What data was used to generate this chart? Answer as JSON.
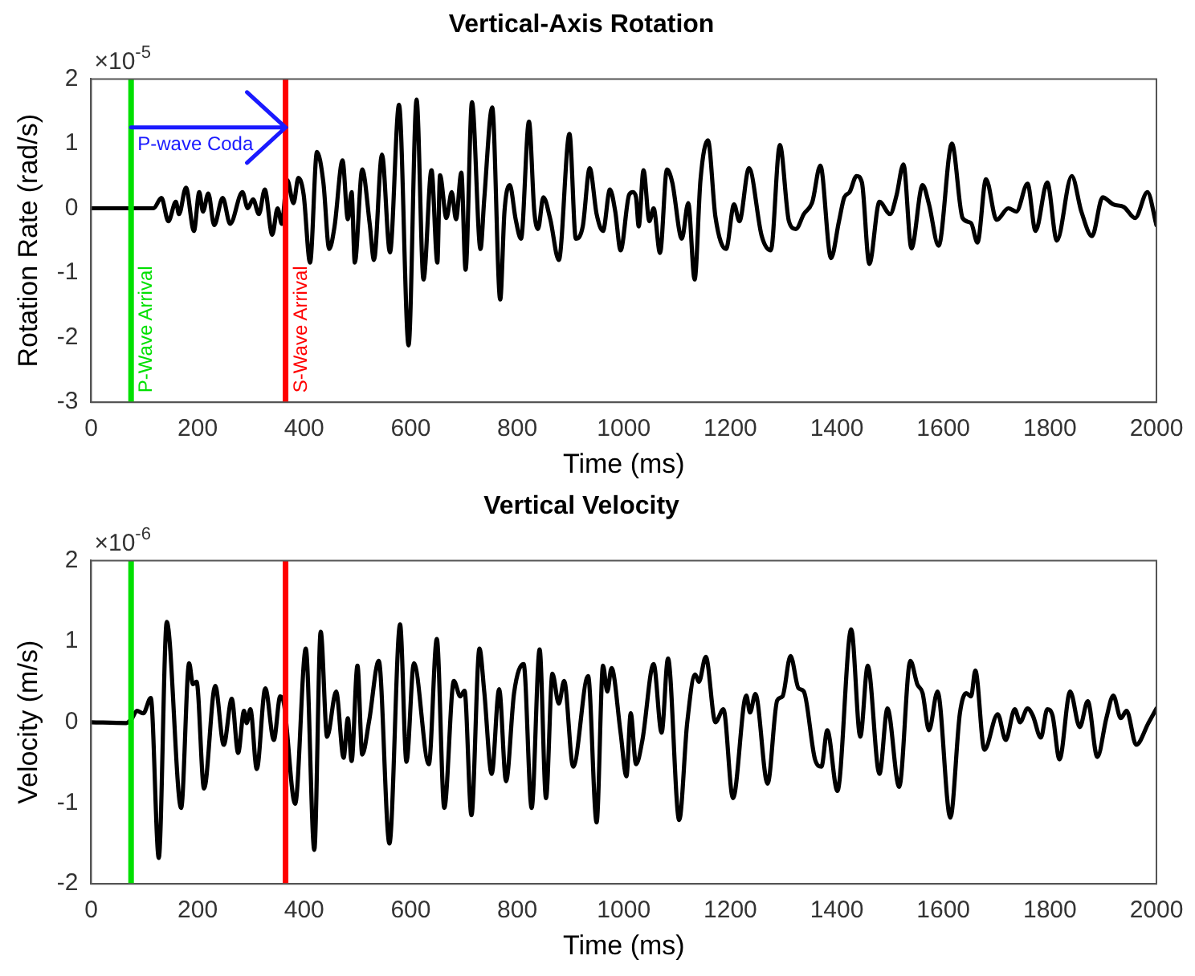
{
  "chart_data": [
    {
      "type": "line",
      "title": "Vertical-Axis Rotation",
      "xlabel": "Time (ms)",
      "ylabel": "Rotation Rate (rad/s)",
      "annotations": [
        "×10$^{-5}$",
        {
          "text": "P-wave Coda",
          "x": 75,
          "y": 1.25
        }
      ],
      "series": [
        {
          "color": "#000000",
          "x": [
            0,
            117,
            132,
            145,
            159,
            165,
            178,
            193,
            203,
            210,
            220,
            231,
            247,
            261,
            284,
            294,
            304,
            315,
            326,
            340,
            350,
            358,
            368,
            380,
            389,
            399,
            411,
            424,
            436,
            447,
            457,
            472,
            482,
            489,
            495,
            509,
            523,
            531,
            546,
            561,
            578,
            596,
            611,
            624,
            639,
            650,
            655,
            667,
            677,
            685,
            695,
            703,
            715,
            731,
            738,
            753,
            768,
            776,
            786,
            797,
            807,
            822,
            832,
            839,
            849,
            862,
            878,
            898,
            910,
            923,
            936,
            949,
            961,
            974,
            984,
            994,
            1010,
            1017,
            1023,
            1028,
            1037,
            1048,
            1056,
            1068,
            1081,
            1091,
            1109,
            1121,
            1133,
            1144,
            1158,
            1172,
            1192,
            1207,
            1217,
            1235,
            1259,
            1276,
            1293,
            1310,
            1323,
            1338,
            1354,
            1369,
            1389,
            1404,
            1414,
            1424,
            1437,
            1447,
            1461,
            1480,
            1500,
            1512,
            1525,
            1540,
            1561,
            1573,
            1591,
            1616,
            1636,
            1652,
            1664,
            1680,
            1700,
            1722,
            1737,
            1758,
            1773,
            1795,
            1813,
            1841,
            1859,
            1879,
            1899,
            1919,
            1939,
            1960,
            1983,
            2000
          ],
          "values": [
            0,
            0,
            0.16,
            -0.2,
            0.1,
            -0.09,
            0.32,
            -0.35,
            0.25,
            -0.05,
            0.23,
            -0.26,
            0.16,
            -0.24,
            0.25,
            0,
            0.14,
            -0.09,
            0.29,
            -0.41,
            0,
            -0.24,
            0.44,
            0.08,
            0.47,
            0.21,
            -0.84,
            0.87,
            0.4,
            -0.63,
            -0.28,
            0.74,
            -0.17,
            0.25,
            -0.84,
            0.6,
            -0.24,
            -0.8,
            0.83,
            -0.68,
            1.6,
            -2.12,
            1.68,
            -1.1,
            0.59,
            -0.84,
            0.51,
            -0.15,
            0.25,
            -0.17,
            0.55,
            -0.95,
            1.64,
            -0.63,
            0.14,
            1.56,
            -1.41,
            -0.05,
            0.36,
            -0.17,
            -0.47,
            1.34,
            -0.05,
            -0.32,
            0.17,
            -0.17,
            -0.8,
            1.15,
            -0.47,
            -0.28,
            0.62,
            -0.09,
            -0.35,
            0.29,
            -0.05,
            -0.65,
            0.21,
            0.25,
            0.17,
            -0.28,
            0.59,
            -0.2,
            0,
            -0.69,
            0.6,
            0.4,
            -0.47,
            0.08,
            -1.1,
            0.44,
            1.05,
            -0.13,
            -0.63,
            0.06,
            -0.2,
            0.62,
            -0.43,
            -0.65,
            0.98,
            -0.2,
            -0.32,
            -0.09,
            0.1,
            0.66,
            -0.77,
            -0.2,
            0.17,
            0.25,
            0.5,
            0.4,
            -0.86,
            0.1,
            -0.09,
            0.2,
            0.68,
            -0.62,
            0.36,
            0.06,
            -0.58,
            1.0,
            -0.15,
            -0.23,
            -0.53,
            0.45,
            -0.18,
            0,
            -0.05,
            0.38,
            -0.35,
            0.4,
            -0.5,
            0.5,
            -0.05,
            -0.43,
            0.17,
            0.06,
            0.02,
            -0.15,
            0.25,
            -0.26
          ]
        }
      ],
      "xlim": [
        0,
        2000
      ],
      "xticks": [
        0,
        200,
        400,
        600,
        800,
        1000,
        1200,
        1400,
        1600,
        1800,
        2000
      ],
      "ylim": [
        -3,
        2
      ],
      "yticks": [
        -3,
        -2,
        -1,
        0,
        1,
        2
      ],
      "ref_lines": [
        {
          "axis": "x",
          "value": 75,
          "label": "P-Wave Arrival",
          "color": "#00e000"
        },
        {
          "axis": "x",
          "value": 365,
          "label": "S-Wave Arrival",
          "color": "#ff0000"
        }
      ],
      "grid": false,
      "legend": false,
      "marker": "none",
      "line_style": "solid"
    },
    {
      "type": "line",
      "title": "Vertical Velocity",
      "xlabel": "Time (ms)",
      "ylabel": "Velocity (m/s)",
      "annotations": [
        "×10$^{-6}$"
      ],
      "series": [
        {
          "color": "#000000",
          "x": [
            0,
            66,
            76,
            86,
            98,
            112,
            127,
            142,
            169,
            184,
            191,
            198,
            212,
            233,
            249,
            264,
            276,
            287,
            292,
            299,
            311,
            327,
            343,
            355,
            362,
            383,
            403,
            419,
            431,
            443,
            460,
            474,
            482,
            489,
            500,
            509,
            522,
            540,
            560,
            580,
            592,
            606,
            634,
            649,
            663,
            681,
            693,
            701,
            714,
            729,
            738,
            752,
            766,
            779,
            794,
            812,
            827,
            842,
            854,
            866,
            878,
            888,
            905,
            933,
            949,
            961,
            969,
            977,
            994,
            1005,
            1013,
            1023,
            1035,
            1056,
            1071,
            1083,
            1104,
            1119,
            1134,
            1141,
            1154,
            1172,
            1187,
            1205,
            1230,
            1237,
            1247,
            1270,
            1288,
            1298,
            1313,
            1328,
            1338,
            1359,
            1371,
            1382,
            1401,
            1427,
            1444,
            1458,
            1480,
            1495,
            1517,
            1538,
            1551,
            1561,
            1573,
            1589,
            1613,
            1631,
            1643,
            1652,
            1660,
            1677,
            1702,
            1717,
            1734,
            1744,
            1758,
            1768,
            1783,
            1795,
            1805,
            1818,
            1838,
            1856,
            1871,
            1889,
            1906,
            1919,
            1933,
            1944,
            1962,
            1985,
            2000
          ],
          "values": [
            0,
            -0.01,
            0.04,
            0.14,
            0.11,
            0.3,
            -1.68,
            1.24,
            -1.06,
            0.73,
            0.47,
            0.5,
            -0.82,
            0.45,
            -0.28,
            0.29,
            -0.38,
            0.14,
            -0.01,
            0.16,
            -0.58,
            0.42,
            -0.22,
            0.32,
            0.23,
            -1.01,
            0.91,
            -1.58,
            1.12,
            -0.18,
            0.38,
            -0.44,
            0.05,
            -0.48,
            0.7,
            -0.4,
            0.02,
            0.76,
            -1.5,
            1.21,
            -0.49,
            0.73,
            -0.52,
            1.03,
            -1.06,
            0.51,
            0.32,
            0.39,
            -1.15,
            0.91,
            0.38,
            -0.64,
            0.41,
            -0.73,
            0.36,
            0.72,
            -1.06,
            0.9,
            -0.94,
            0.6,
            0.23,
            0.51,
            -0.55,
            0.57,
            -1.24,
            0.7,
            0.38,
            0.67,
            -0.13,
            -0.67,
            0.11,
            -0.52,
            -0.22,
            0.72,
            -0.13,
            0.79,
            -1.21,
            -0.01,
            0.59,
            0.5,
            0.81,
            0,
            0.16,
            -0.94,
            0.33,
            0.12,
            0.35,
            -0.76,
            0.27,
            0.32,
            0.82,
            0.42,
            0.38,
            -0.46,
            -0.55,
            -0.1,
            -0.85,
            1.15,
            -0.18,
            0.7,
            -0.64,
            0.17,
            -0.8,
            0.76,
            0.47,
            0.36,
            -0.1,
            0.38,
            -1.18,
            0.11,
            0.36,
            0.32,
            0.64,
            -0.34,
            0.1,
            -0.22,
            0.16,
            0,
            0.17,
            0.08,
            -0.19,
            0.16,
            0.08,
            -0.46,
            0.38,
            -0.06,
            0.26,
            -0.43,
            0.05,
            0.33,
            0.05,
            0.14,
            -0.28,
            -0.01,
            0.17
          ]
        }
      ],
      "xlim": [
        0,
        2000
      ],
      "xticks": [
        0,
        200,
        400,
        600,
        800,
        1000,
        1200,
        1400,
        1600,
        1800,
        2000
      ],
      "ylim": [
        -2,
        2
      ],
      "yticks": [
        -2,
        -1,
        0,
        1,
        2
      ],
      "ref_lines": [
        {
          "axis": "x",
          "value": 75,
          "color": "#00e000"
        },
        {
          "axis": "x",
          "value": 365,
          "color": "#ff0000"
        }
      ],
      "grid": false,
      "legend": false,
      "marker": "none",
      "line_style": "solid"
    }
  ]
}
